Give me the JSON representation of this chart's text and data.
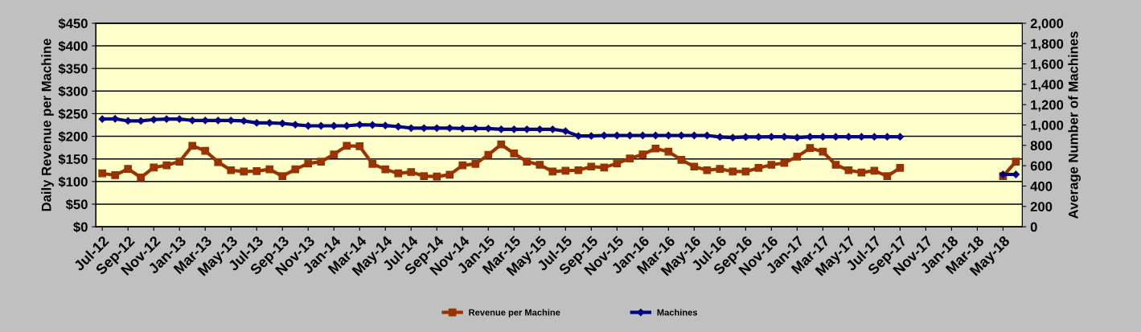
{
  "chart_data": {
    "type": "line",
    "categories": [
      "Jul-12",
      null,
      "Sep-12",
      null,
      "Nov-12",
      null,
      "Jan-13",
      null,
      "Mar-13",
      null,
      "May-13",
      null,
      "Jul-13",
      null,
      "Sep-13",
      null,
      "Nov-13",
      null,
      "Jan-14",
      null,
      "Mar-14",
      null,
      "May-14",
      null,
      "Jul-14",
      null,
      "Sep-14",
      null,
      "Nov-14",
      null,
      "Jan-15",
      null,
      "Mar-15",
      null,
      "May-15",
      null,
      "Jul-15",
      null,
      "Sep-15",
      null,
      "Nov-15",
      null,
      "Jan-16",
      null,
      "Mar-16",
      null,
      "May-16",
      null,
      "Jul-16",
      null,
      "Sep-16",
      null,
      "Nov-16",
      null,
      "Jan-17",
      null,
      "Mar-17",
      null,
      "May-17",
      null,
      "Jul-17",
      null,
      "Sep-17",
      null,
      "Nov-17",
      null,
      "Jan-18",
      null,
      "Mar-18",
      null,
      "May-18",
      null
    ],
    "series": [
      {
        "name": "Revenue per Machine",
        "color": "#993300",
        "marker": "square",
        "values": [
          118,
          114,
          128,
          109,
          131,
          136,
          144,
          179,
          168,
          143,
          125,
          122,
          123,
          127,
          112,
          127,
          140,
          144,
          160,
          179,
          178,
          139,
          127,
          118,
          121,
          112,
          111,
          115,
          136,
          139,
          159,
          182,
          162,
          144,
          137,
          122,
          124,
          125,
          133,
          131,
          140,
          151,
          160,
          173,
          166,
          148,
          133,
          125,
          128,
          122,
          122,
          130,
          137,
          141,
          155,
          174,
          166,
          137,
          125,
          120,
          124,
          112,
          130,
          null,
          null,
          null,
          null,
          null,
          null,
          null,
          112,
          144
        ]
      },
      {
        "name": "Machines",
        "color": "#000080",
        "marker": "diamond",
        "axis": "y2",
        "values": [
          1058,
          1061,
          1040,
          1040,
          1053,
          1058,
          1058,
          1045,
          1045,
          1045,
          1045,
          1040,
          1021,
          1021,
          1016,
          1003,
          992,
          992,
          992,
          992,
          1003,
          1000,
          995,
          984,
          970,
          970,
          970,
          970,
          966,
          966,
          966,
          958,
          958,
          958,
          958,
          958,
          940,
          892,
          892,
          897,
          897,
          897,
          897,
          897,
          897,
          897,
          897,
          897,
          882,
          876,
          882,
          882,
          884,
          884,
          876,
          884,
          884,
          884,
          884,
          884,
          884,
          884,
          884,
          null,
          null,
          null,
          null,
          null,
          null,
          null,
          514,
          514
        ]
      }
    ],
    "ylabel": "Daily Revenue per Machine",
    "y2label": "Average Number of Machines",
    "ylim": [
      0,
      450
    ],
    "yticks": [
      {
        "value": 0,
        "label": "$0"
      },
      {
        "value": 50,
        "label": "$50"
      },
      {
        "value": 100,
        "label": "$100"
      },
      {
        "value": 150,
        "label": "$150"
      },
      {
        "value": 200,
        "label": "$200"
      },
      {
        "value": 250,
        "label": "$250"
      },
      {
        "value": 300,
        "label": "$300"
      },
      {
        "value": 350,
        "label": "$350"
      },
      {
        "value": 400,
        "label": "$400"
      },
      {
        "value": 450,
        "label": "$450"
      }
    ],
    "y2lim": [
      0,
      2000
    ],
    "y2ticks": [
      0,
      200,
      400,
      600,
      800,
      {
        "value": 1000,
        "label": "1,000"
      },
      {
        "value": 1200,
        "label": "1,200"
      },
      {
        "value": 1400,
        "label": "1,400"
      },
      {
        "value": 1600,
        "label": "1,600"
      },
      {
        "value": 1800,
        "label": "1,800"
      },
      {
        "value": 2000,
        "label": "2,000"
      }
    ],
    "grid": "y",
    "legend": "bottom",
    "line_style": "solid"
  }
}
